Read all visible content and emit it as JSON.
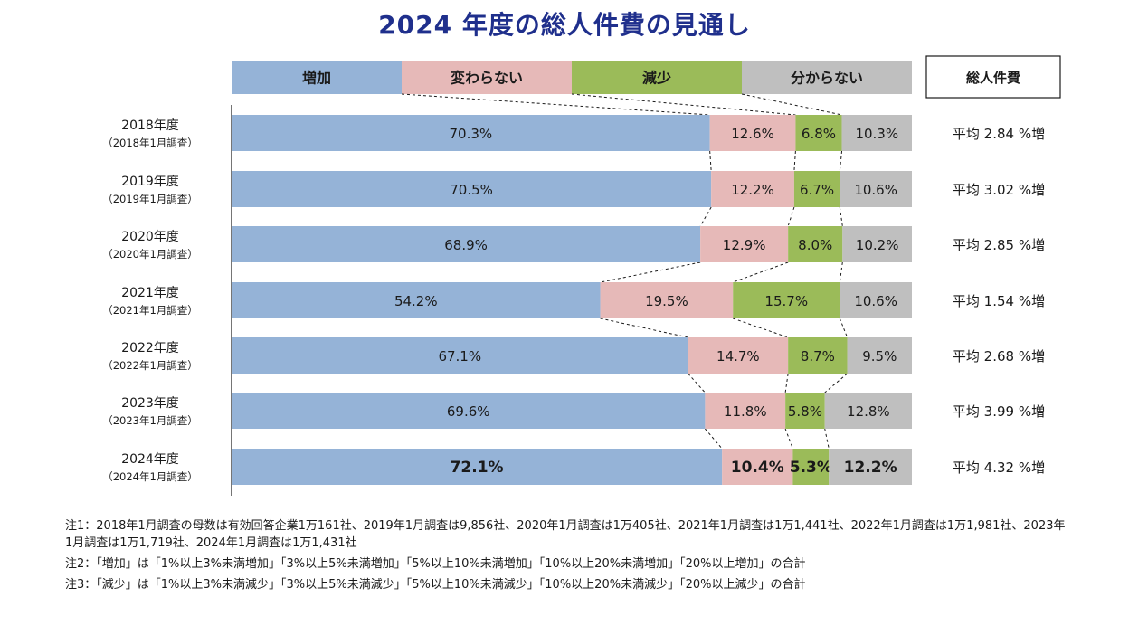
{
  "chart_data": {
    "type": "bar",
    "orientation": "horizontal",
    "stacked": "percent",
    "title": "2024 年度の総人件費の見通し",
    "legend": {
      "placement": "top",
      "entries": [
        "増加",
        "変わらない",
        "減少",
        "分からない"
      ]
    },
    "side_header": "総人件費",
    "categories": [
      {
        "label": "2018年度",
        "sublabel": "（2018年1月調査）"
      },
      {
        "label": "2019年度",
        "sublabel": "（2019年1月調査）"
      },
      {
        "label": "2020年度",
        "sublabel": "（2020年1月調査）"
      },
      {
        "label": "2021年度",
        "sublabel": "（2021年1月調査）"
      },
      {
        "label": "2022年度",
        "sublabel": "（2022年1月調査）"
      },
      {
        "label": "2023年度",
        "sublabel": "（2023年1月調査）"
      },
      {
        "label": "2024年度",
        "sublabel": "（2024年1月調査）"
      }
    ],
    "series": [
      {
        "name": "増加",
        "color": "#95b3d7",
        "values": [
          70.3,
          70.5,
          68.9,
          54.2,
          67.1,
          69.6,
          72.1
        ]
      },
      {
        "name": "変わらない",
        "color": "#e6b9b8",
        "values": [
          12.6,
          12.2,
          12.9,
          19.5,
          14.7,
          11.8,
          10.4
        ]
      },
      {
        "name": "減少",
        "color": "#9bbb59",
        "values": [
          6.8,
          6.7,
          8.0,
          15.7,
          8.7,
          5.8,
          5.3
        ]
      },
      {
        "name": "分からない",
        "color": "#bfbfbf",
        "values": [
          10.3,
          10.6,
          10.2,
          10.6,
          9.5,
          12.8,
          12.2
        ]
      }
    ],
    "value_labels": [
      [
        "70.3%",
        "12.6%",
        "6.8%",
        "10.3%"
      ],
      [
        "70.5%",
        "12.2%",
        "6.7%",
        "10.6%"
      ],
      [
        "68.9%",
        "12.9%",
        "8.0%",
        "10.2%"
      ],
      [
        "54.2%",
        "19.5%",
        "15.7%",
        "10.6%"
      ],
      [
        "67.1%",
        "14.7%",
        "8.7%",
        "9.5%"
      ],
      [
        "69.6%",
        "11.8%",
        "5.8%",
        "12.8%"
      ],
      [
        "72.1%",
        "10.4%",
        "5.3%",
        "12.2%"
      ]
    ],
    "totals": [
      "平均 2.84 %増",
      "平均 3.02 %増",
      "平均 2.85 %増",
      "平均 1.54 %増",
      "平均 2.68 %増",
      "平均 3.99 %増",
      "平均 4.32 %増"
    ],
    "highlight_last_row": true,
    "xlim": [
      0,
      100
    ],
    "grid": false
  },
  "notes": [
    "注1：2018年1月調査の母数は有効回答企業1万161社、2019年1月調査は9,856社、2020年1月調査は1万405社、2021年1月調査は1万1,441社、2022年1月調査は1万1,981社、2023年1月調査は1万1,719社、2024年1月調査は1万1,431社",
    "注2：「増加」は「1%以上3%未満増加」「3%以上5%未満増加」「5%以上10%未満増加」「10%以上20%未満増加」「20%以上増加」の合計",
    "注3：「減少」は「1%以上3%未満減少」「3%以上5%未満減少」「5%以上10%未満減少」「10%以上20%未満減少」「20%以上減少」の合計"
  ]
}
